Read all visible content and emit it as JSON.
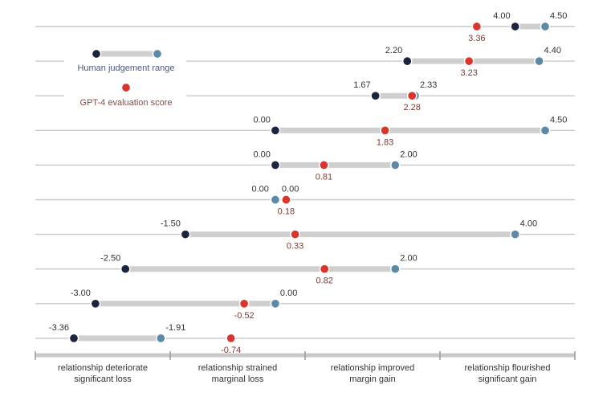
{
  "chart_data": {
    "type": "dumbbell",
    "x_scale": {
      "min": -3.36,
      "max": 4.5
    },
    "rows": [
      {
        "low": 4.0,
        "high": 4.5,
        "low_label": "4.00",
        "high_label": "4.50",
        "gpt": 3.36,
        "gpt_label": "3.36"
      },
      {
        "low": 2.2,
        "high": 4.4,
        "low_label": "2.20",
        "high_label": "4.40",
        "gpt": 3.23,
        "gpt_label": "3.23"
      },
      {
        "low": 1.67,
        "high": 2.33,
        "low_label": "1.67",
        "high_label": "2.33",
        "gpt": 2.28,
        "gpt_label": "2.28"
      },
      {
        "low": 0.0,
        "high": 4.5,
        "low_label": "0.00",
        "high_label": "4.50",
        "gpt": 1.83,
        "gpt_label": "1.83"
      },
      {
        "low": 0.0,
        "high": 2.0,
        "low_label": "0.00",
        "high_label": "2.00",
        "gpt": 0.81,
        "gpt_label": "0.81"
      },
      {
        "low": 0.0,
        "high": 0.0,
        "low_label": "0.00",
        "high_label": "0.00",
        "gpt": 0.18,
        "gpt_label": "0.18"
      },
      {
        "low": -1.5,
        "high": 4.0,
        "low_label": "-1.50",
        "high_label": "4.00",
        "gpt": 0.33,
        "gpt_label": "0.33"
      },
      {
        "low": -2.5,
        "high": 2.0,
        "low_label": "-2.50",
        "high_label": "2.00",
        "gpt": 0.82,
        "gpt_label": "0.82"
      },
      {
        "low": -3.0,
        "high": 0.0,
        "low_label": "-3.00",
        "high_label": "0.00",
        "gpt": -0.52,
        "gpt_label": "-0.52"
      },
      {
        "low": -3.36,
        "high": -1.91,
        "low_label": "-3.36",
        "high_label": "-1.91",
        "gpt": -0.74,
        "gpt_label": "-0.74"
      }
    ],
    "legend": [
      {
        "name": "Human judgement range",
        "kind": "range"
      },
      {
        "name": "GPT-4 evaluation score",
        "kind": "point"
      }
    ],
    "legend_position": "top-left",
    "categories": [
      {
        "line1": "relationship deteriorate",
        "line2": "significant loss"
      },
      {
        "line1": "relationship strained",
        "line2": "marginal loss"
      },
      {
        "line1": "relationship improved",
        "line2": "margin gain"
      },
      {
        "line1": "relationship flourished",
        "line2": "significant gain"
      }
    ],
    "grid": false
  },
  "colors": {
    "low_dot": "#1d2440",
    "high_dot": "#5b8aa6",
    "gpt_dot": "#d9352b",
    "range_bar": "#cfcfcf",
    "row_line": "#c8c8c8",
    "label_text": "#333333",
    "gpt_label_text": "#7a3a34",
    "legend_text_range": "#4a5a7a",
    "legend_text_point": "#8a4a42",
    "category_bar": "#c8c8c8"
  }
}
